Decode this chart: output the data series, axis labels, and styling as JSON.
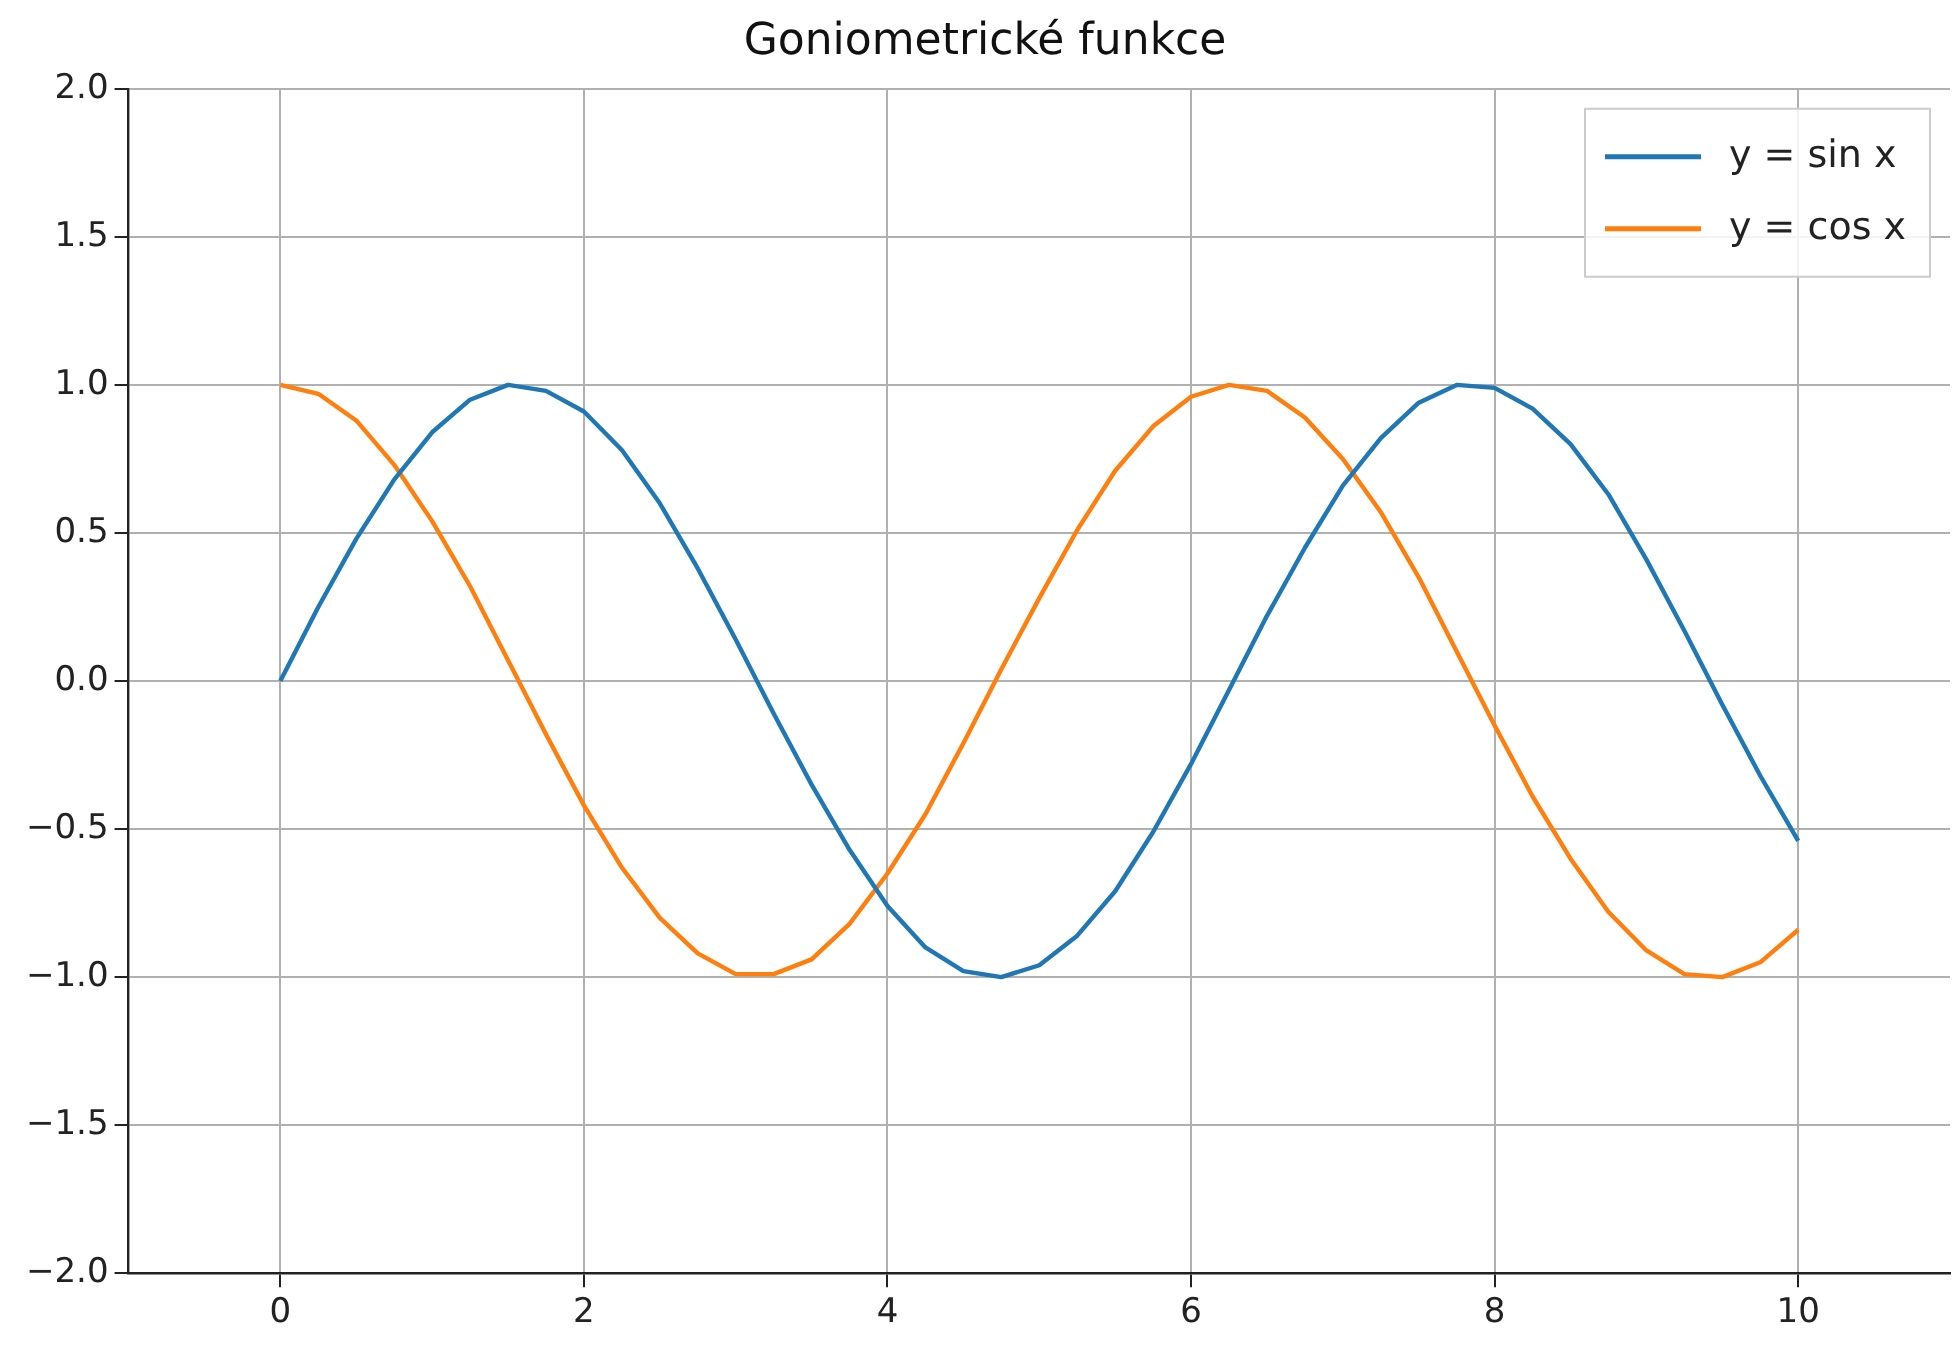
{
  "chart_data": {
    "type": "line",
    "title": "Goniometrické funkce",
    "x": [
      0,
      0.25,
      0.5,
      0.75,
      1,
      1.25,
      1.5,
      1.75,
      2,
      2.25,
      2.5,
      2.75,
      3,
      3.25,
      3.5,
      3.75,
      4,
      4.25,
      4.5,
      4.75,
      5,
      5.25,
      5.5,
      5.75,
      6,
      6.25,
      6.5,
      6.75,
      7,
      7.25,
      7.5,
      7.75,
      8,
      8.25,
      8.5,
      8.75,
      9,
      9.25,
      9.5,
      9.75,
      10
    ],
    "series": [
      {
        "name": "y = sin x",
        "color": "#1f77b4",
        "values": [
          0,
          0.25,
          0.48,
          0.68,
          0.84,
          0.95,
          1,
          0.98,
          0.91,
          0.78,
          0.6,
          0.38,
          0.14,
          -0.11,
          -0.35,
          -0.57,
          -0.76,
          -0.9,
          -0.98,
          -1,
          -0.96,
          -0.86,
          -0.71,
          -0.51,
          -0.28,
          -0.03,
          0.22,
          0.45,
          0.66,
          0.82,
          0.94,
          1,
          0.99,
          0.92,
          0.8,
          0.63,
          0.41,
          0.17,
          -0.08,
          -0.32,
          -0.54
        ]
      },
      {
        "name": "y = cos x",
        "color": "#ff7f0e",
        "values": [
          1,
          0.97,
          0.88,
          0.73,
          0.54,
          0.32,
          0.07,
          -0.18,
          -0.42,
          -0.63,
          -0.8,
          -0.92,
          -0.99,
          -0.99,
          -0.94,
          -0.82,
          -0.65,
          -0.45,
          -0.21,
          0.04,
          0.28,
          0.51,
          0.71,
          0.86,
          0.96,
          1,
          0.98,
          0.89,
          0.75,
          0.57,
          0.35,
          0.1,
          -0.15,
          -0.39,
          -0.6,
          -0.78,
          -0.91,
          -0.99,
          -1,
          -0.95,
          -0.84
        ]
      }
    ],
    "xlim": [
      -1,
      11
    ],
    "xticks": [
      0,
      2,
      4,
      6,
      8,
      10
    ],
    "ylim": [
      -2,
      2
    ],
    "yticks": [
      {
        "value": -2,
        "label": "−2.0"
      },
      {
        "value": -1.5,
        "label": "−1.5"
      },
      {
        "value": -1,
        "label": "−1.0"
      },
      {
        "value": -0.5,
        "label": "−0.5"
      },
      {
        "value": 0,
        "label": "0.0"
      },
      {
        "value": 0.5,
        "label": "0.5"
      },
      {
        "value": 1,
        "label": "1.0"
      },
      {
        "value": 1.5,
        "label": "1.5"
      },
      {
        "value": 2,
        "label": "2.0"
      }
    ],
    "grid": true,
    "legend": "top right",
    "marker": "none",
    "line_style": "solid"
  }
}
